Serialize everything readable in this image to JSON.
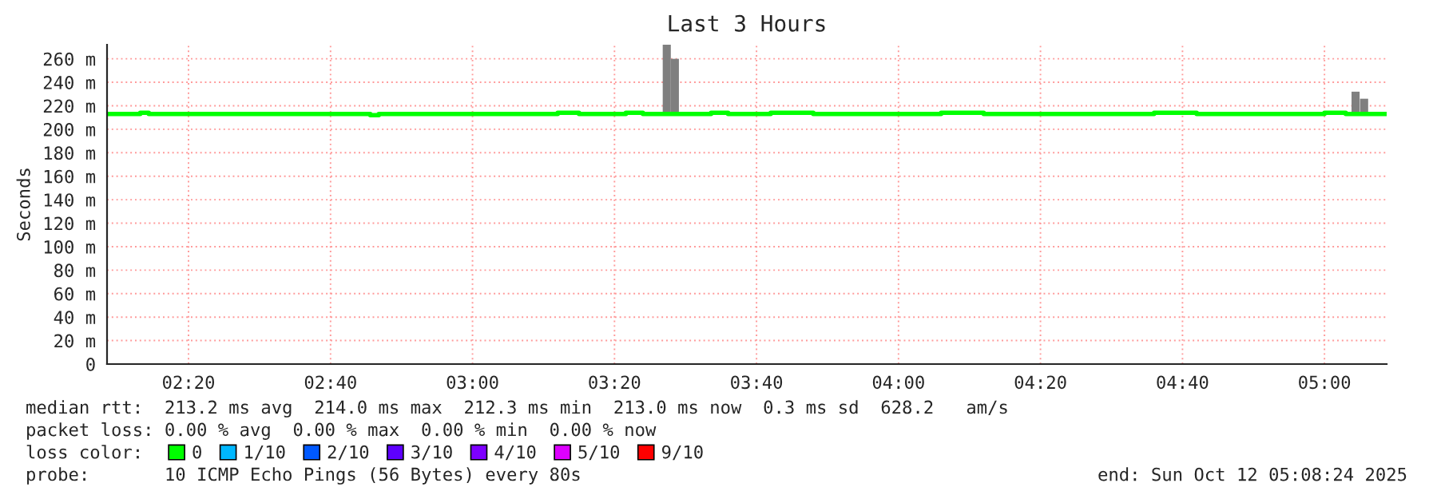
{
  "chart_data": {
    "type": "step",
    "title": "Last 3 Hours",
    "ylabel": "Seconds",
    "legend_title": "loss color:",
    "legend": "bottom",
    "grid": true,
    "xlim": [
      2.142,
      5.146
    ],
    "ylim": [
      0,
      272
    ],
    "xticks": [
      {
        "value": 2.3333,
        "label": "02:20"
      },
      {
        "value": 2.6667,
        "label": "02:40"
      },
      {
        "value": 3.0,
        "label": "03:00"
      },
      {
        "value": 3.3333,
        "label": "03:20"
      },
      {
        "value": 3.6667,
        "label": "03:40"
      },
      {
        "value": 4.0,
        "label": "04:00"
      },
      {
        "value": 4.3333,
        "label": "04:20"
      },
      {
        "value": 4.6667,
        "label": "04:40"
      },
      {
        "value": 5.0,
        "label": "05:00"
      }
    ],
    "yticks": [
      {
        "value": 0,
        "label": "0"
      },
      {
        "value": 20,
        "label": "20 m"
      },
      {
        "value": 40,
        "label": "40 m"
      },
      {
        "value": 60,
        "label": "60 m"
      },
      {
        "value": 80,
        "label": "80 m"
      },
      {
        "value": 100,
        "label": "100 m"
      },
      {
        "value": 120,
        "label": "120 m"
      },
      {
        "value": 140,
        "label": "140 m"
      },
      {
        "value": 160,
        "label": "160 m"
      },
      {
        "value": 180,
        "label": "180 m"
      },
      {
        "value": 200,
        "label": "200 m"
      },
      {
        "value": 220,
        "label": "220 m"
      },
      {
        "value": 240,
        "label": "240 m"
      },
      {
        "value": 260,
        "label": "260 m"
      }
    ],
    "series": [
      {
        "type": "bar",
        "color": "#7f7f7f",
        "x": [
          3.456,
          3.475,
          5.073,
          5.093
        ],
        "base": [
          213,
          213,
          213,
          213
        ],
        "values": [
          59,
          47,
          19,
          13
        ]
      },
      {
        "name": "0",
        "color": "#00ff00",
        "x": [
          2.145,
          2.22,
          2.24,
          2.6,
          2.76,
          2.78,
          3.0,
          3.2,
          3.25,
          3.36,
          3.4,
          3.56,
          3.6,
          3.7,
          3.8,
          3.95,
          4.1,
          4.2,
          4.3,
          4.45,
          4.6,
          4.7,
          4.9,
          5.0,
          5.05,
          5.146
        ],
        "values": [
          213,
          214,
          213,
          213,
          212,
          213,
          213,
          214,
          213,
          214,
          213,
          214,
          213,
          214,
          213,
          213,
          214,
          213,
          213,
          213,
          214,
          213,
          213,
          214,
          213,
          213
        ]
      },
      {
        "name": "1/10",
        "color": "#00b8ff"
      },
      {
        "name": "2/10",
        "color": "#0059ff"
      },
      {
        "name": "3/10",
        "color": "#5e00ff"
      },
      {
        "name": "4/10",
        "color": "#7e00ff"
      },
      {
        "name": "5/10",
        "color": "#dd00ff"
      },
      {
        "name": "9/10",
        "color": "#ff0000"
      }
    ],
    "annotations": [
      "median rtt:  213.2 ms avg  214.0 ms max  212.3 ms min  213.0 ms now  0.3 ms sd  628.2   am/s",
      "packet loss: 0.00 % avg  0.00 % max  0.00 % min  0.00 % now",
      "probe:       10 ICMP Echo Pings (56 Bytes) every 80s",
      "end: Sun Oct 12 05:08:24 2025"
    ]
  }
}
